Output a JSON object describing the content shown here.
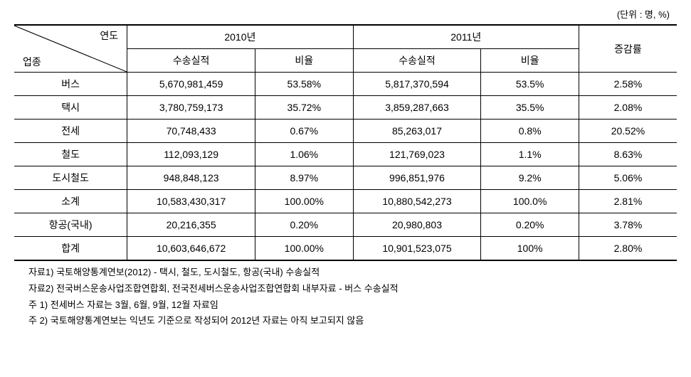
{
  "unit_label": "(단위 : 명, %)",
  "table": {
    "header": {
      "diagonal_top": "연도",
      "diagonal_bottom": "업종",
      "year1": "2010년",
      "year2": "2011년",
      "sub_value": "수송실적",
      "sub_ratio": "비율",
      "change_rate": "증감률"
    },
    "rows": [
      {
        "category": "버스",
        "val1": "5,670,981,459",
        "ratio1": "53.58%",
        "val2": "5,817,370,594",
        "ratio2": "53.5%",
        "change": "2.58%"
      },
      {
        "category": "택시",
        "val1": "3,780,759,173",
        "ratio1": "35.72%",
        "val2": "3,859,287,663",
        "ratio2": "35.5%",
        "change": "2.08%"
      },
      {
        "category": "전세",
        "val1": "70,748,433",
        "ratio1": "0.67%",
        "val2": "85,263,017",
        "ratio2": "0.8%",
        "change": "20.52%"
      },
      {
        "category": "철도",
        "val1": "112,093,129",
        "ratio1": "1.06%",
        "val2": "121,769,023",
        "ratio2": "1.1%",
        "change": "8.63%"
      },
      {
        "category": "도시철도",
        "val1": "948,848,123",
        "ratio1": "8.97%",
        "val2": "996,851,976",
        "ratio2": "9.2%",
        "change": "5.06%"
      },
      {
        "category": "소계",
        "val1": "10,583,430,317",
        "ratio1": "100.00%",
        "val2": "10,880,542,273",
        "ratio2": "100.0%",
        "change": "2.81%"
      },
      {
        "category": "항공(국내)",
        "val1": "20,216,355",
        "ratio1": "0.20%",
        "val2": "20,980,803",
        "ratio2": "0.20%",
        "change": "3.78%"
      },
      {
        "category": "합계",
        "val1": "10,603,646,672",
        "ratio1": "100.00%",
        "val2": "10,901,523,075",
        "ratio2": "100%",
        "change": "2.80%"
      }
    ]
  },
  "footnotes": [
    "자료1) 국토해양통계연보(2012) - 택시, 철도, 도시철도, 항공(국내) 수송실적",
    "자료2) 전국버스운송사업조합연합회, 전국전세버스운송사업조합연합회 내부자료 - 버스 수송실적",
    "주 1) 전세버스 자료는 3월, 6월, 9월, 12월 자료임",
    "주 2) 국토해양통계연보는 익년도 기준으로 작성되어 2012년 자료는 아직 보고되지 않음"
  ]
}
